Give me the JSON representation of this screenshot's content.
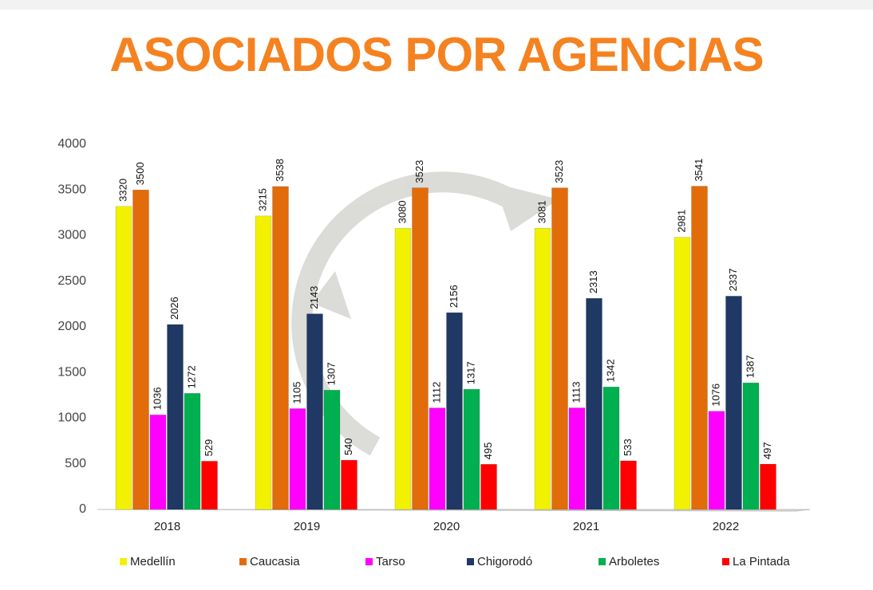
{
  "chart_data": {
    "type": "bar",
    "title": "ASOCIADOS POR AGENCIAS",
    "categories": [
      "2018",
      "2019",
      "2020",
      "2021",
      "2022"
    ],
    "series": [
      {
        "name": "Medellín",
        "color": "#f2f200",
        "values": [
          3320,
          3215,
          3080,
          3081,
          2981
        ]
      },
      {
        "name": "Caucasia",
        "color": "#e26b0a",
        "values": [
          3500,
          3538,
          3523,
          3523,
          3541
        ]
      },
      {
        "name": "Tarso",
        "color": "#ff00ff",
        "values": [
          1036,
          1105,
          1112,
          1113,
          1076
        ]
      },
      {
        "name": "Chigorodó",
        "color": "#1f3864",
        "values": [
          2026,
          2143,
          2156,
          2313,
          2337
        ]
      },
      {
        "name": "Arboletes",
        "color": "#00b050",
        "values": [
          1272,
          1307,
          1317,
          1342,
          1387
        ]
      },
      {
        "name": "La Pintada",
        "color": "#ff0000",
        "values": [
          529,
          540,
          495,
          533,
          497
        ]
      }
    ],
    "ylim": [
      0,
      4000
    ],
    "yticks": [
      0,
      500,
      1000,
      1500,
      2000,
      2500,
      3000,
      3500,
      4000
    ],
    "legend": "bottom"
  }
}
